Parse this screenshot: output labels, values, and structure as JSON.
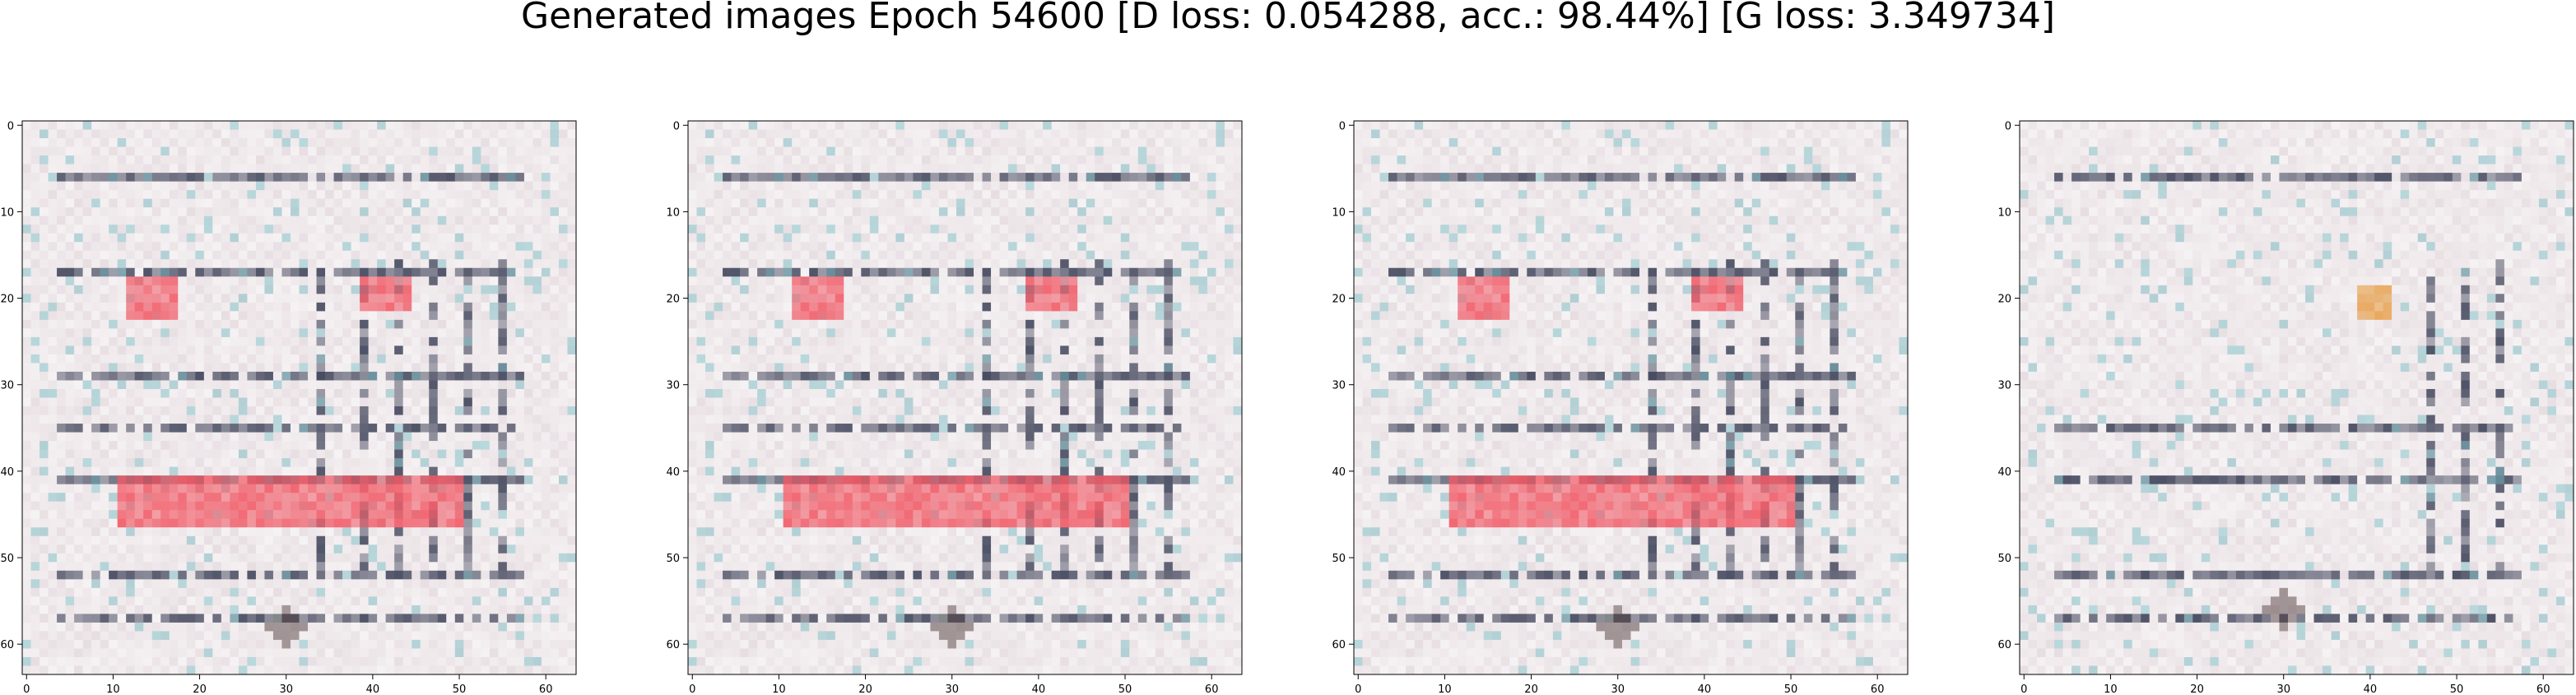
{
  "figure": {
    "title": "Generated images Epoch 54600 [D loss: 0.054288, acc.: 98.44%] [G loss: 3.349734]"
  },
  "colors": {
    "background": "#e7dee2",
    "speckle": "#f3eef0",
    "dark_line": "#3d4258",
    "red_highlight": "#f25a66",
    "orange_highlight": "#e8a04a",
    "teal_accent": "#7bbec4"
  },
  "chart_data": [
    {
      "type": "heatmap",
      "title": "",
      "xlabel": "",
      "ylabel": "",
      "xlim": [
        -0.5,
        63.5
      ],
      "ylim": [
        63.5,
        -0.5
      ],
      "xticks": [
        0,
        10,
        20,
        30,
        40,
        50,
        60
      ],
      "yticks": [
        0,
        10,
        20,
        30,
        40,
        50,
        60
      ],
      "grid": false,
      "description_of_values": "64x64 RGB generated image; same content in samples 1-3",
      "features": {
        "h_lines_rows": [
          6,
          17,
          29,
          35,
          41,
          52,
          57
        ],
        "v_lines_cols": [
          34,
          39,
          43,
          47,
          51,
          55
        ],
        "red_blocks": [
          {
            "x": [
              12,
              17
            ],
            "y": [
              18,
              22
            ]
          },
          {
            "x": [
              39,
              44
            ],
            "y": [
              18,
              21
            ]
          },
          {
            "x": [
              11,
              50
            ],
            "y": [
              41,
              46
            ]
          }
        ],
        "orange_blocks": [],
        "dark_blob": {
          "x": 30,
          "y": 58
        }
      }
    },
    {
      "type": "heatmap",
      "title": "",
      "xlabel": "",
      "ylabel": "",
      "xlim": [
        -0.5,
        63.5
      ],
      "ylim": [
        63.5,
        -0.5
      ],
      "xticks": [
        0,
        10,
        20,
        30,
        40,
        50,
        60
      ],
      "yticks": [
        0,
        10,
        20,
        30,
        40,
        50,
        60
      ],
      "grid": false,
      "features": {
        "h_lines_rows": [
          6,
          17,
          29,
          35,
          41,
          52,
          57
        ],
        "v_lines_cols": [
          34,
          39,
          43,
          47,
          51,
          55
        ],
        "red_blocks": [
          {
            "x": [
              12,
              17
            ],
            "y": [
              18,
              22
            ]
          },
          {
            "x": [
              39,
              44
            ],
            "y": [
              18,
              21
            ]
          },
          {
            "x": [
              11,
              50
            ],
            "y": [
              41,
              46
            ]
          }
        ],
        "orange_blocks": [],
        "dark_blob": {
          "x": 30,
          "y": 58
        }
      }
    },
    {
      "type": "heatmap",
      "title": "",
      "xlabel": "",
      "ylabel": "",
      "xlim": [
        -0.5,
        63.5
      ],
      "ylim": [
        63.5,
        -0.5
      ],
      "xticks": [
        0,
        10,
        20,
        30,
        40,
        50,
        60
      ],
      "yticks": [
        0,
        10,
        20,
        30,
        40,
        50,
        60
      ],
      "grid": false,
      "features": {
        "h_lines_rows": [
          6,
          17,
          29,
          35,
          41,
          52,
          57
        ],
        "v_lines_cols": [
          34,
          39,
          43,
          47,
          51,
          55
        ],
        "red_blocks": [
          {
            "x": [
              12,
              17
            ],
            "y": [
              18,
              22
            ]
          },
          {
            "x": [
              39,
              44
            ],
            "y": [
              18,
              21
            ]
          },
          {
            "x": [
              11,
              50
            ],
            "y": [
              41,
              46
            ]
          }
        ],
        "orange_blocks": [],
        "dark_blob": {
          "x": 30,
          "y": 58
        }
      }
    },
    {
      "type": "heatmap",
      "title": "",
      "xlabel": "",
      "ylabel": "",
      "xlim": [
        -0.5,
        63.5
      ],
      "ylim": [
        63.5,
        -0.5
      ],
      "xticks": [
        0,
        10,
        20,
        30,
        40,
        50,
        60
      ],
      "yticks": [
        0,
        10,
        20,
        30,
        40,
        50,
        60
      ],
      "grid": false,
      "features": {
        "h_lines_rows": [
          6,
          35,
          41,
          52,
          57
        ],
        "v_lines_cols": [
          47,
          51,
          55
        ],
        "red_blocks": [],
        "orange_blocks": [
          {
            "x": [
              39,
              42
            ],
            "y": [
              19,
              22
            ]
          }
        ],
        "dark_blob": {
          "x": 30,
          "y": 56
        }
      }
    }
  ]
}
